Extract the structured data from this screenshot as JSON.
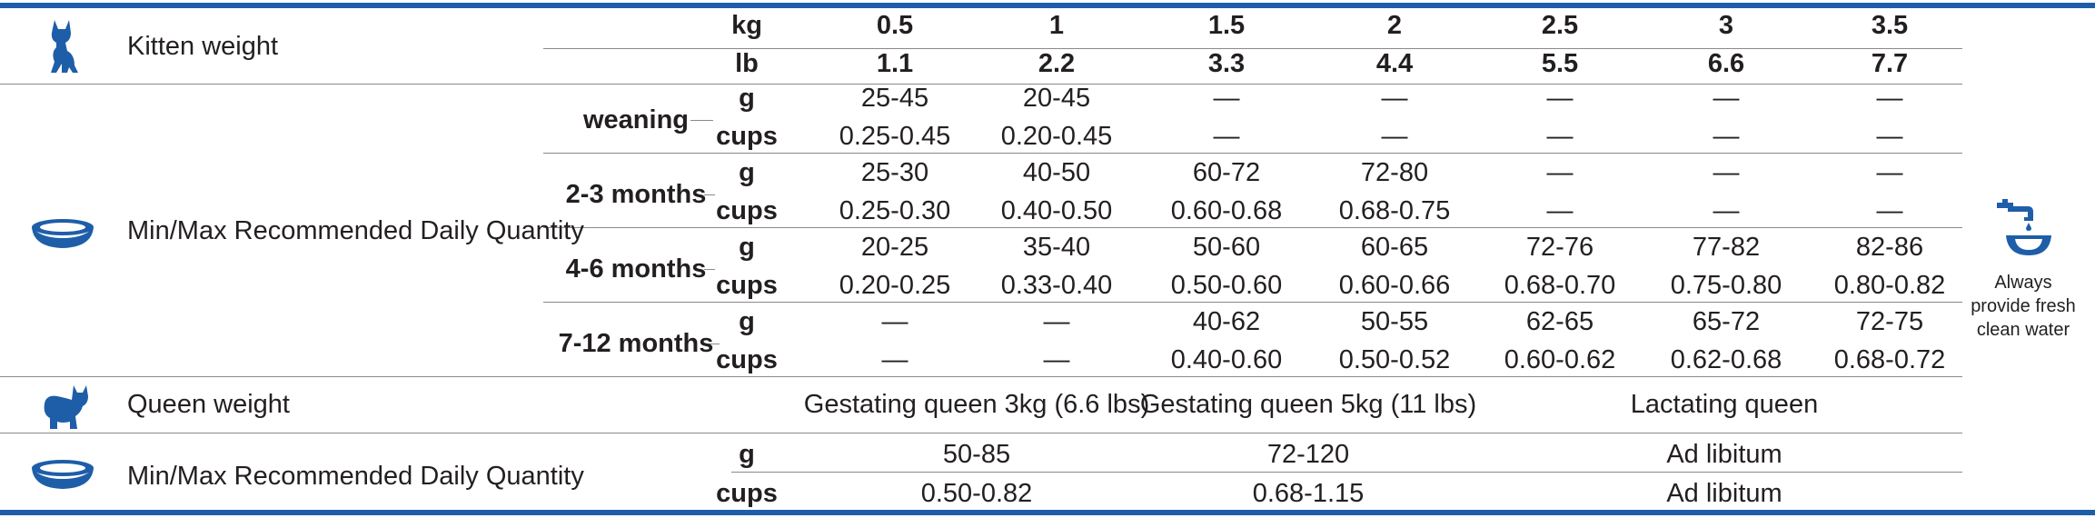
{
  "colors": {
    "accent": "#1e5ea8",
    "text": "#231f20",
    "rule": "#8a8a8a"
  },
  "icons": {
    "kitten": "kitten-icon",
    "bowl": "food-bowl-icon",
    "queen": "queen-cat-icon",
    "water": "water-tap-icon"
  },
  "rows": {
    "kitten_weight": "Kitten weight",
    "daily_quantity": "Min/Max Recommended Daily Quantity",
    "queen_weight": "Queen weight",
    "queen_daily_quantity": "Min/Max Recommended Daily Quantity"
  },
  "weights": {
    "kg_label": "kg",
    "lb_label": "lb",
    "kg": [
      "0.5",
      "1",
      "1.5",
      "2",
      "2.5",
      "3",
      "3.5"
    ],
    "lb": [
      "1.1",
      "2.2",
      "3.3",
      "4.4",
      "5.5",
      "6.6",
      "7.7"
    ]
  },
  "age_groups": [
    {
      "label": "weaning",
      "g": [
        "25-45",
        "20-45",
        "—",
        "—",
        "—",
        "—",
        "—"
      ],
      "cups": [
        "0.25-0.45",
        "0.20-0.45",
        "—",
        "—",
        "—",
        "—",
        "—"
      ]
    },
    {
      "label": "2-3 months",
      "g": [
        "25-30",
        "40-50",
        "60-72",
        "72-80",
        "—",
        "—",
        "—"
      ],
      "cups": [
        "0.25-0.30",
        "0.40-0.50",
        "0.60-0.68",
        "0.68-0.75",
        "—",
        "—",
        "—"
      ]
    },
    {
      "label": "4-6 months",
      "g": [
        "20-25",
        "35-40",
        "50-60",
        "60-65",
        "72-76",
        "77-82",
        "82-86"
      ],
      "cups": [
        "0.20-0.25",
        "0.33-0.40",
        "0.50-0.60",
        "0.60-0.66",
        "0.68-0.70",
        "0.75-0.80",
        "0.80-0.82"
      ]
    },
    {
      "label": "7-12 months",
      "g": [
        "—",
        "—",
        "40-62",
        "50-55",
        "62-65",
        "65-72",
        "72-75"
      ],
      "cups": [
        "—",
        "—",
        "0.40-0.60",
        "0.50-0.52",
        "0.60-0.62",
        "0.62-0.68",
        "0.68-0.72"
      ]
    }
  ],
  "unit_g": "g",
  "unit_cups": "cups",
  "queen": {
    "headers": [
      "Gestating queen 3kg (6.6 lbs)",
      "Gestating queen 5kg (11 lbs)",
      "Lactating queen"
    ],
    "g": [
      "50-85",
      "72-120",
      "Ad libitum"
    ],
    "cups": [
      "0.50-0.82",
      "0.68-1.15",
      "Ad libitum"
    ],
    "unit_g": "g",
    "unit_cups": "cups"
  },
  "water_note": "Always provide fresh clean water"
}
